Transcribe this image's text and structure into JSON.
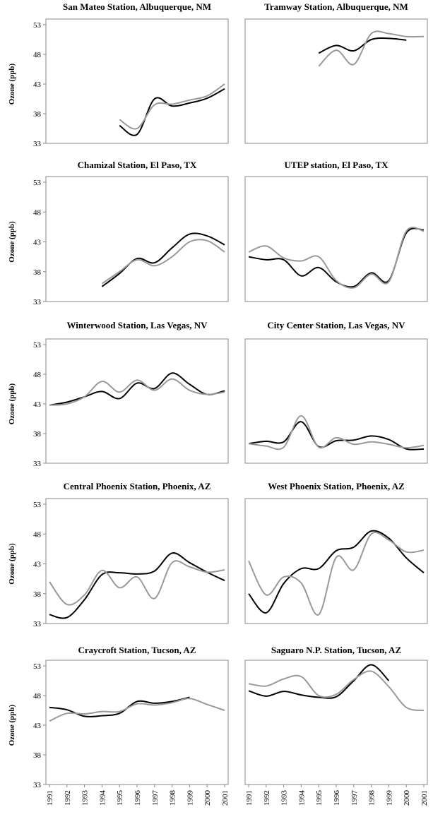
{
  "chart_data": [
    {
      "type": "line",
      "title": "San Mateo Station, Albuquerque, NM",
      "y_label": "Ozone (ppb)",
      "ylim": [
        33,
        53
      ],
      "yticks": [
        33,
        38,
        43,
        48,
        53
      ],
      "x": [
        1991,
        1992,
        1993,
        1994,
        1995,
        1996,
        1997,
        1998,
        1999,
        2000,
        2001
      ],
      "series": [
        {
          "color": "#000000",
          "values": [
            null,
            null,
            null,
            null,
            36.0,
            34.5,
            40.5,
            39.3,
            39.8,
            40.6,
            42.2
          ]
        },
        {
          "color": "#999999",
          "values": [
            null,
            null,
            null,
            null,
            37.0,
            35.5,
            39.5,
            39.6,
            40.3,
            41.0,
            43.0
          ]
        }
      ]
    },
    {
      "type": "line",
      "title": "Tramway Station, Albuquerque, NM",
      "ylim": [
        33,
        53
      ],
      "x": [
        1991,
        1992,
        1993,
        1994,
        1995,
        1996,
        1997,
        1998,
        1999,
        2000,
        2001
      ],
      "series": [
        {
          "color": "#000000",
          "values": [
            null,
            null,
            null,
            null,
            48.2,
            49.5,
            48.6,
            50.5,
            50.7,
            50.4,
            null
          ]
        },
        {
          "color": "#999999",
          "values": [
            null,
            null,
            null,
            null,
            46.0,
            48.7,
            46.3,
            51.5,
            51.5,
            51.0,
            51.0
          ]
        }
      ]
    },
    {
      "type": "line",
      "title": "Chamizal Station, El Paso, TX",
      "y_label": "Ozone (ppb)",
      "ylim": [
        33,
        53
      ],
      "yticks": [
        33,
        38,
        43,
        48,
        53
      ],
      "x": [
        1991,
        1992,
        1993,
        1994,
        1995,
        1996,
        1997,
        1998,
        1999,
        2000,
        2001
      ],
      "series": [
        {
          "color": "#000000",
          "values": [
            null,
            null,
            null,
            35.5,
            37.7,
            40.2,
            39.5,
            42.0,
            44.3,
            44.0,
            42.5
          ]
        },
        {
          "color": "#999999",
          "values": [
            null,
            null,
            null,
            36.0,
            38.0,
            40.0,
            39.0,
            40.5,
            43.0,
            43.2,
            41.3
          ]
        }
      ]
    },
    {
      "type": "line",
      "title": "UTEP station, El Paso, TX",
      "ylim": [
        33,
        53
      ],
      "x": [
        1991,
        1992,
        1993,
        1994,
        1995,
        1996,
        1997,
        1998,
        1999,
        2000,
        2001
      ],
      "series": [
        {
          "color": "#000000",
          "values": [
            40.5,
            40.0,
            40.0,
            37.3,
            38.7,
            36.3,
            35.5,
            37.8,
            36.5,
            44.5,
            45.0
          ]
        },
        {
          "color": "#999999",
          "values": [
            41.3,
            42.3,
            40.3,
            39.8,
            40.5,
            36.5,
            35.3,
            37.6,
            36.3,
            44.8,
            44.8
          ]
        }
      ]
    },
    {
      "type": "line",
      "title": "Winterwood Station, Las Vegas, NV",
      "y_label": "Ozone (ppb)",
      "ylim": [
        33,
        53
      ],
      "yticks": [
        33,
        38,
        43,
        48,
        53
      ],
      "x": [
        1991,
        1992,
        1993,
        1994,
        1995,
        1996,
        1997,
        1998,
        1999,
        2000,
        2001
      ],
      "series": [
        {
          "color": "#000000",
          "values": [
            42.8,
            43.3,
            44.2,
            45.1,
            43.9,
            46.5,
            45.6,
            48.2,
            46.3,
            44.6,
            45.2
          ]
        },
        {
          "color": "#999999",
          "values": [
            42.8,
            43.0,
            44.2,
            46.8,
            45.0,
            47.0,
            45.3,
            47.2,
            45.3,
            44.6,
            45.0
          ]
        }
      ]
    },
    {
      "type": "line",
      "title": "City Center Station, Las Vegas, NV",
      "ylim": [
        33,
        53
      ],
      "x": [
        1991,
        1992,
        1993,
        1994,
        1995,
        1996,
        1997,
        1998,
        1999,
        2000,
        2001
      ],
      "series": [
        {
          "color": "#000000",
          "values": [
            36.3,
            36.7,
            36.6,
            40.0,
            35.8,
            36.8,
            36.9,
            37.6,
            37.0,
            35.4,
            35.4
          ]
        },
        {
          "color": "#999999",
          "values": [
            36.3,
            35.9,
            35.7,
            41.0,
            35.7,
            37.3,
            36.2,
            36.6,
            36.2,
            35.6,
            36.0
          ]
        }
      ]
    },
    {
      "type": "line",
      "title": "Central Phoenix Station, Phoenix, AZ",
      "y_label": "Ozone (ppb)",
      "ylim": [
        33,
        53
      ],
      "yticks": [
        33,
        38,
        43,
        48,
        53
      ],
      "x": [
        1991,
        1992,
        1993,
        1994,
        1995,
        1996,
        1997,
        1998,
        1999,
        2000,
        2001
      ],
      "series": [
        {
          "color": "#000000",
          "values": [
            34.5,
            34.0,
            37.0,
            41.2,
            41.5,
            41.3,
            41.8,
            44.8,
            43.2,
            41.6,
            40.2
          ]
        },
        {
          "color": "#999999",
          "values": [
            40.0,
            36.2,
            37.8,
            41.9,
            39.0,
            40.8,
            37.2,
            43.2,
            42.5,
            41.6,
            42.0
          ]
        }
      ]
    },
    {
      "type": "line",
      "title": "West Phoenix Station, Phoenix, AZ",
      "ylim": [
        33,
        53
      ],
      "x": [
        1991,
        1992,
        1993,
        1994,
        1995,
        1996,
        1997,
        1998,
        1999,
        2000,
        2001
      ],
      "series": [
        {
          "color": "#000000",
          "values": [
            38.0,
            34.8,
            39.7,
            42.2,
            42.2,
            45.2,
            45.8,
            48.5,
            47.3,
            44.0,
            41.5
          ]
        },
        {
          "color": "#999999",
          "values": [
            43.5,
            37.8,
            40.8,
            39.8,
            34.5,
            44.1,
            42.0,
            48.0,
            47.0,
            45.0,
            45.3
          ]
        }
      ]
    },
    {
      "type": "line",
      "title": "Craycroft Station, Tucson, AZ",
      "y_label": "Ozone (ppb)",
      "ylim": [
        33,
        53
      ],
      "yticks": [
        33,
        38,
        43,
        48,
        53
      ],
      "x": [
        1991,
        1992,
        1993,
        1994,
        1995,
        1996,
        1997,
        1998,
        1999,
        2000,
        2001
      ],
      "series": [
        {
          "color": "#000000",
          "values": [
            46.0,
            45.6,
            44.5,
            44.6,
            45.0,
            47.0,
            46.7,
            47.0,
            47.7,
            null,
            null
          ]
        },
        {
          "color": "#999999",
          "values": [
            43.7,
            45.0,
            44.9,
            45.3,
            45.3,
            46.6,
            46.4,
            46.8,
            47.5,
            46.5,
            45.5
          ]
        }
      ]
    },
    {
      "type": "line",
      "title": "Saguaro N.P. Station, Tucson, AZ",
      "ylim": [
        33,
        53
      ],
      "x": [
        1991,
        1992,
        1993,
        1994,
        1995,
        1996,
        1997,
        1998,
        1999,
        2000,
        2001
      ],
      "series": [
        {
          "color": "#000000",
          "values": [
            48.8,
            47.9,
            48.7,
            48.1,
            47.7,
            47.8,
            50.5,
            53.2,
            50.5,
            null,
            null
          ]
        },
        {
          "color": "#999999",
          "values": [
            50.0,
            49.6,
            50.8,
            51.2,
            48.0,
            48.2,
            50.7,
            52.1,
            49.5,
            46.0,
            45.5
          ]
        }
      ]
    }
  ]
}
